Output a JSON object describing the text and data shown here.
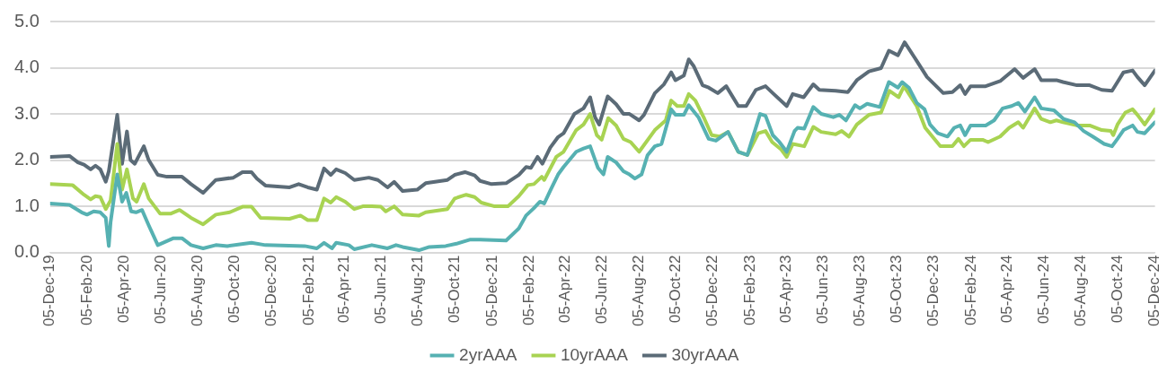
{
  "chart_data": {
    "type": "line",
    "legend": "bottom",
    "grid": "y",
    "marker": "none",
    "line_style": "solid",
    "xlim": [
      "2019-12-05",
      "2024-12-05"
    ],
    "xticks": [
      {
        "value": "2019-12-05",
        "label": "05-Dec-19"
      },
      {
        "value": "2020-02-05",
        "label": "05-Feb-20"
      },
      {
        "value": "2020-04-05",
        "label": "05-Apr-20"
      },
      {
        "value": "2020-06-05",
        "label": "05-Jun-20"
      },
      {
        "value": "2020-08-05",
        "label": "05-Aug-20"
      },
      {
        "value": "2020-10-05",
        "label": "05-Oct-20"
      },
      {
        "value": "2020-12-05",
        "label": "05-Dec-20"
      },
      {
        "value": "2021-02-05",
        "label": "05-Feb-21"
      },
      {
        "value": "2021-04-05",
        "label": "05-Apr-21"
      },
      {
        "value": "2021-06-05",
        "label": "05-Jun-21"
      },
      {
        "value": "2021-08-05",
        "label": "05-Aug-21"
      },
      {
        "value": "2021-10-05",
        "label": "05-Oct-21"
      },
      {
        "value": "2021-12-05",
        "label": "05-Dec-21"
      },
      {
        "value": "2022-02-05",
        "label": "05-Feb-22"
      },
      {
        "value": "2022-04-05",
        "label": "05-Apr-22"
      },
      {
        "value": "2022-06-05",
        "label": "05-Jun-22"
      },
      {
        "value": "2022-08-05",
        "label": "05-Aug-22"
      },
      {
        "value": "2022-10-05",
        "label": "05-Oct-22"
      },
      {
        "value": "2022-12-05",
        "label": "05-Dec-22"
      },
      {
        "value": "2023-02-05",
        "label": "05-Feb-23"
      },
      {
        "value": "2023-04-05",
        "label": "05-Apr-23"
      },
      {
        "value": "2023-06-05",
        "label": "05-Jun-23"
      },
      {
        "value": "2023-08-05",
        "label": "05-Aug-23"
      },
      {
        "value": "2023-10-05",
        "label": "05-Oct-23"
      },
      {
        "value": "2023-12-05",
        "label": "05-Dec-23"
      },
      {
        "value": "2024-02-05",
        "label": "05-Feb-24"
      },
      {
        "value": "2024-04-05",
        "label": "05-Apr-24"
      },
      {
        "value": "2024-06-05",
        "label": "05-Jun-24"
      },
      {
        "value": "2024-08-05",
        "label": "05-Aug-24"
      },
      {
        "value": "2024-10-05",
        "label": "05-Oct-24"
      },
      {
        "value": "2024-12-05",
        "label": "05-Dec-24"
      }
    ],
    "ylim": [
      0,
      5
    ],
    "yticks": [
      {
        "value": 0,
        "label": "0.0"
      },
      {
        "value": 1,
        "label": "1.0"
      },
      {
        "value": 2,
        "label": "2.0"
      },
      {
        "value": 3,
        "label": "3.0"
      },
      {
        "value": 4,
        "label": "4.0"
      },
      {
        "value": 5,
        "label": "5.0"
      }
    ],
    "series": [
      {
        "name": "2yrAAA",
        "color": "#56b1b2",
        "x": [
          "2019-12-05",
          "2020-01-06",
          "2020-01-26",
          "2020-02-04",
          "2020-02-15",
          "2020-02-26",
          "2020-03-06",
          "2020-03-11",
          "2020-03-14",
          "2020-03-25",
          "2020-04-02",
          "2020-04-09",
          "2020-04-17",
          "2020-04-25",
          "2020-05-05",
          "2020-05-16",
          "2020-05-31",
          "2020-06-26",
          "2020-07-10",
          "2020-07-25",
          "2020-08-14",
          "2020-09-04",
          "2020-09-23",
          "2020-11-02",
          "2020-11-25",
          "2021-01-29",
          "2021-02-18",
          "2021-03-02",
          "2021-03-15",
          "2021-03-22",
          "2021-04-12",
          "2021-04-21",
          "2021-05-20",
          "2021-06-15",
          "2021-06-29",
          "2021-07-10",
          "2021-08-06",
          "2021-08-23",
          "2021-09-19",
          "2021-10-07",
          "2021-10-30",
          "2021-11-15",
          "2021-12-28",
          "2022-01-18",
          "2022-01-30",
          "2022-02-12",
          "2022-02-22",
          "2022-03-01",
          "2022-03-11",
          "2022-03-24",
          "2022-04-02",
          "2022-04-23",
          "2022-05-05",
          "2022-05-16",
          "2022-05-29",
          "2022-06-07",
          "2022-06-14",
          "2022-06-28",
          "2022-07-10",
          "2022-07-20",
          "2022-07-29",
          "2022-08-09",
          "2022-08-19",
          "2022-08-31",
          "2022-09-11",
          "2022-09-27",
          "2022-10-04",
          "2022-10-18",
          "2022-10-26",
          "2022-11-11",
          "2022-11-28",
          "2022-12-10",
          "2022-12-30",
          "2023-01-16",
          "2023-01-31",
          "2023-02-21",
          "2023-03-02",
          "2023-03-14",
          "2023-03-25",
          "2023-04-06",
          "2023-04-19",
          "2023-04-24",
          "2023-05-05",
          "2023-05-20",
          "2023-06-02",
          "2023-06-22",
          "2023-07-02",
          "2023-07-13",
          "2023-07-28",
          "2023-08-05",
          "2023-08-17",
          "2023-09-07",
          "2023-09-22",
          "2023-10-07",
          "2023-10-14",
          "2023-10-25",
          "2023-11-07",
          "2023-11-20",
          "2023-11-29",
          "2023-12-12",
          "2023-12-28",
          "2024-01-08",
          "2024-01-18",
          "2024-01-26",
          "2024-02-04",
          "2024-02-29",
          "2024-03-14",
          "2024-03-28",
          "2024-04-12",
          "2024-04-23",
          "2024-05-04",
          "2024-05-20",
          "2024-05-31",
          "2024-06-21",
          "2024-07-07",
          "2024-07-25",
          "2024-08-09",
          "2024-08-24",
          "2024-09-12",
          "2024-09-25",
          "2024-10-04",
          "2024-10-14",
          "2024-10-29",
          "2024-11-06",
          "2024-11-18",
          "2024-12-05"
        ],
        "values": [
          1.06,
          1.03,
          0.87,
          0.82,
          0.89,
          0.87,
          0.75,
          0.14,
          0.66,
          1.69,
          1.1,
          1.29,
          0.89,
          0.87,
          0.92,
          0.59,
          0.16,
          0.31,
          0.31,
          0.16,
          0.09,
          0.16,
          0.14,
          0.21,
          0.16,
          0.14,
          0.09,
          0.21,
          0.09,
          0.21,
          0.16,
          0.07,
          0.16,
          0.09,
          0.16,
          0.12,
          0.05,
          0.12,
          0.14,
          0.19,
          0.28,
          0.28,
          0.26,
          0.52,
          0.8,
          0.96,
          1.1,
          1.06,
          1.34,
          1.69,
          1.85,
          2.18,
          2.25,
          2.3,
          1.83,
          1.69,
          2.07,
          1.95,
          1.76,
          1.69,
          1.6,
          1.69,
          2.11,
          2.3,
          2.35,
          3.1,
          2.98,
          2.98,
          3.19,
          2.93,
          2.46,
          2.42,
          2.61,
          2.18,
          2.11,
          3.0,
          2.96,
          2.54,
          2.39,
          2.18,
          2.63,
          2.7,
          2.68,
          3.15,
          3.0,
          2.93,
          2.98,
          2.86,
          3.19,
          3.12,
          3.22,
          3.15,
          3.69,
          3.57,
          3.69,
          3.57,
          3.24,
          3.1,
          2.77,
          2.58,
          2.51,
          2.7,
          2.75,
          2.54,
          2.75,
          2.75,
          2.86,
          3.12,
          3.17,
          3.24,
          3.05,
          3.36,
          3.12,
          3.08,
          2.89,
          2.82,
          2.63,
          2.51,
          2.35,
          2.3,
          2.46,
          2.65,
          2.75,
          2.61,
          2.58,
          2.82
        ]
      },
      {
        "name": "10yrAAA",
        "color": "#a8d352",
        "x": [
          "2019-12-05",
          "2020-01-11",
          "2020-01-30",
          "2020-02-10",
          "2020-02-18",
          "2020-02-26",
          "2020-03-06",
          "2020-03-14",
          "2020-03-25",
          "2020-04-02",
          "2020-04-10",
          "2020-04-20",
          "2020-04-26",
          "2020-05-08",
          "2020-05-16",
          "2020-06-04",
          "2020-06-21",
          "2020-07-06",
          "2020-07-25",
          "2020-08-14",
          "2020-09-04",
          "2020-09-27",
          "2020-10-18",
          "2020-11-02",
          "2020-11-17",
          "2021-01-04",
          "2021-01-22",
          "2021-02-03",
          "2021-02-18",
          "2021-03-02",
          "2021-03-13",
          "2021-03-22",
          "2021-04-06",
          "2021-04-21",
          "2021-05-05",
          "2021-05-20",
          "2021-06-04",
          "2021-06-12",
          "2021-06-26",
          "2021-07-10",
          "2021-08-06",
          "2021-08-17",
          "2021-09-22",
          "2021-10-04",
          "2021-10-23",
          "2021-11-06",
          "2021-11-17",
          "2021-12-09",
          "2021-12-31",
          "2022-01-18",
          "2022-02-02",
          "2022-02-12",
          "2022-02-25",
          "2022-03-01",
          "2022-03-21",
          "2022-04-02",
          "2022-04-23",
          "2022-05-05",
          "2022-05-16",
          "2022-05-27",
          "2022-06-04",
          "2022-06-15",
          "2022-06-28",
          "2022-07-10",
          "2022-07-22",
          "2022-08-05",
          "2022-08-31",
          "2022-09-18",
          "2022-09-27",
          "2022-10-07",
          "2022-10-18",
          "2022-10-26",
          "2022-11-06",
          "2022-11-21",
          "2022-12-03",
          "2022-12-16",
          "2022-12-30",
          "2023-01-16",
          "2023-01-31",
          "2023-02-18",
          "2023-03-02",
          "2023-03-13",
          "2023-03-28",
          "2023-04-06",
          "2023-04-16",
          "2023-05-05",
          "2023-05-20",
          "2023-06-02",
          "2023-06-26",
          "2023-07-06",
          "2023-07-18",
          "2023-07-31",
          "2023-08-20",
          "2023-09-09",
          "2023-09-23",
          "2023-10-08",
          "2023-10-17",
          "2023-11-07",
          "2023-11-21",
          "2023-12-16",
          "2024-01-05",
          "2024-01-15",
          "2024-01-24",
          "2024-02-04",
          "2024-02-24",
          "2024-03-04",
          "2024-03-24",
          "2024-04-08",
          "2024-04-23",
          "2024-05-01",
          "2024-05-20",
          "2024-05-31",
          "2024-06-15",
          "2024-06-25",
          "2024-07-06",
          "2024-07-29",
          "2024-08-19",
          "2024-09-08",
          "2024-09-23",
          "2024-09-27",
          "2024-10-04",
          "2024-10-17",
          "2024-10-29",
          "2024-11-06",
          "2024-11-18",
          "2024-12-05"
        ],
        "values": [
          1.48,
          1.46,
          1.25,
          1.15,
          1.22,
          1.2,
          0.94,
          1.13,
          2.35,
          1.36,
          1.8,
          1.17,
          1.1,
          1.48,
          1.17,
          0.84,
          0.84,
          0.92,
          0.75,
          0.61,
          0.82,
          0.87,
          0.99,
          0.99,
          0.75,
          0.73,
          0.8,
          0.7,
          0.7,
          1.17,
          1.08,
          1.2,
          1.1,
          0.94,
          1.0,
          1.0,
          0.99,
          0.89,
          1.0,
          0.82,
          0.8,
          0.87,
          0.94,
          1.17,
          1.25,
          1.2,
          1.08,
          1.0,
          1.0,
          1.22,
          1.46,
          1.48,
          1.64,
          1.57,
          2.07,
          2.18,
          2.65,
          2.77,
          3.0,
          2.54,
          2.44,
          2.91,
          2.75,
          2.46,
          2.39,
          2.18,
          2.65,
          2.86,
          3.29,
          3.17,
          3.17,
          3.43,
          3.29,
          2.89,
          2.54,
          2.51,
          2.61,
          2.18,
          2.11,
          2.58,
          2.63,
          2.39,
          2.23,
          2.07,
          2.35,
          2.3,
          2.72,
          2.61,
          2.56,
          2.63,
          2.51,
          2.77,
          2.98,
          3.03,
          3.5,
          3.36,
          3.6,
          3.17,
          2.7,
          2.3,
          2.3,
          2.46,
          2.3,
          2.44,
          2.44,
          2.39,
          2.51,
          2.7,
          2.82,
          2.7,
          3.12,
          2.89,
          2.82,
          2.86,
          2.82,
          2.75,
          2.75,
          2.65,
          2.63,
          2.54,
          2.77,
          3.03,
          3.1,
          2.98,
          2.77,
          3.1
        ]
      },
      {
        "name": "30yrAAA",
        "color": "#5b6b77",
        "x": [
          "2019-12-05",
          "2020-01-06",
          "2020-01-20",
          "2020-01-30",
          "2020-02-10",
          "2020-02-18",
          "2020-02-26",
          "2020-03-06",
          "2020-03-11",
          "2020-03-25",
          "2020-04-02",
          "2020-04-10",
          "2020-04-16",
          "2020-04-23",
          "2020-05-08",
          "2020-05-16",
          "2020-05-31",
          "2020-06-15",
          "2020-07-10",
          "2020-07-25",
          "2020-08-14",
          "2020-09-04",
          "2020-10-03",
          "2020-10-18",
          "2020-11-02",
          "2020-11-11",
          "2020-11-25",
          "2021-01-04",
          "2021-01-19",
          "2021-02-03",
          "2021-02-18",
          "2021-03-02",
          "2021-03-13",
          "2021-03-22",
          "2021-04-06",
          "2021-04-21",
          "2021-05-15",
          "2021-05-30",
          "2021-06-15",
          "2021-06-26",
          "2021-07-10",
          "2021-08-03",
          "2021-08-17",
          "2021-09-22",
          "2021-10-04",
          "2021-10-21",
          "2021-11-06",
          "2021-11-15",
          "2021-12-04",
          "2021-12-28",
          "2022-01-18",
          "2022-01-30",
          "2022-02-07",
          "2022-02-18",
          "2022-02-26",
          "2022-03-11",
          "2022-03-24",
          "2022-04-02",
          "2022-04-20",
          "2022-05-05",
          "2022-05-16",
          "2022-05-24",
          "2022-05-31",
          "2022-06-14",
          "2022-06-28",
          "2022-07-10",
          "2022-07-20",
          "2022-08-05",
          "2022-08-13",
          "2022-08-31",
          "2022-09-15",
          "2022-09-27",
          "2022-10-04",
          "2022-10-18",
          "2022-10-26",
          "2022-11-03",
          "2022-11-18",
          "2022-11-28",
          "2022-12-13",
          "2022-12-27",
          "2023-01-16",
          "2023-01-29",
          "2023-02-14",
          "2023-03-02",
          "2023-03-14",
          "2023-04-06",
          "2023-04-16",
          "2023-05-04",
          "2023-05-20",
          "2023-05-30",
          "2023-06-26",
          "2023-07-16",
          "2023-07-31",
          "2023-08-20",
          "2023-09-09",
          "2023-09-22",
          "2023-10-07",
          "2023-10-18",
          "2023-11-07",
          "2023-11-24",
          "2023-12-21",
          "2024-01-05",
          "2024-01-18",
          "2024-01-26",
          "2024-02-04",
          "2024-02-29",
          "2024-03-24",
          "2024-04-17",
          "2024-05-01",
          "2024-05-20",
          "2024-05-31",
          "2024-06-25",
          "2024-07-06",
          "2024-07-29",
          "2024-08-19",
          "2024-09-08",
          "2024-09-25",
          "2024-10-04",
          "2024-10-14",
          "2024-10-29",
          "2024-11-06",
          "2024-11-18",
          "2024-12-05"
        ],
        "values": [
          2.07,
          2.09,
          1.95,
          1.9,
          1.8,
          1.88,
          1.8,
          1.53,
          1.76,
          2.98,
          1.92,
          2.62,
          2.0,
          1.92,
          2.3,
          2.0,
          1.68,
          1.64,
          1.64,
          1.48,
          1.29,
          1.57,
          1.62,
          1.74,
          1.74,
          1.6,
          1.45,
          1.41,
          1.48,
          1.41,
          1.36,
          1.82,
          1.68,
          1.8,
          1.72,
          1.57,
          1.62,
          1.57,
          1.41,
          1.53,
          1.33,
          1.36,
          1.5,
          1.57,
          1.68,
          1.74,
          1.67,
          1.55,
          1.48,
          1.5,
          1.68,
          1.85,
          1.83,
          2.07,
          1.92,
          2.27,
          2.5,
          2.58,
          3.0,
          3.12,
          3.36,
          2.93,
          2.77,
          3.38,
          3.21,
          3.0,
          3.0,
          2.86,
          2.98,
          3.45,
          3.64,
          3.9,
          3.73,
          3.83,
          4.18,
          4.04,
          3.62,
          3.57,
          3.45,
          3.6,
          3.17,
          3.17,
          3.52,
          3.6,
          3.45,
          3.17,
          3.43,
          3.36,
          3.64,
          3.52,
          3.5,
          3.47,
          3.73,
          3.92,
          3.99,
          4.37,
          4.27,
          4.55,
          4.15,
          3.8,
          3.45,
          3.47,
          3.62,
          3.43,
          3.6,
          3.6,
          3.71,
          3.97,
          3.78,
          3.97,
          3.73,
          3.73,
          3.69,
          3.62,
          3.62,
          3.52,
          3.5,
          3.69,
          3.9,
          3.94,
          3.8,
          3.62,
          3.94
        ]
      }
    ]
  }
}
